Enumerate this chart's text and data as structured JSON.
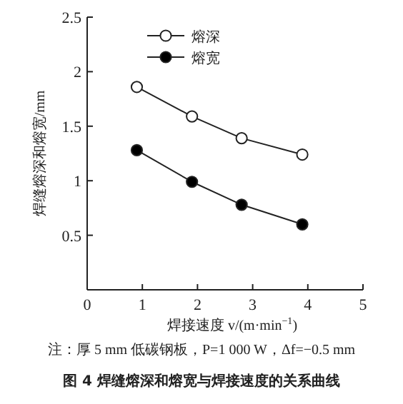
{
  "chart_data": {
    "type": "line",
    "title": "图 4  焊缝熔深和熔宽与焊接速度的关系曲线",
    "xlabel": "焊接速度 v/(m·min$^{−1}$)",
    "ylabel": "焊缝熔深和熔宽/mm",
    "annotations": [
      "注：厚 5 mm 低碳钢板，P=1 000 W，Δf=−0.5 mm"
    ],
    "x": [
      0.9,
      1.9,
      2.8,
      3.9
    ],
    "series": [
      {
        "name": "熔深",
        "color": "#ffffff",
        "values": [
          1.86,
          1.59,
          1.39,
          1.24
        ]
      },
      {
        "name": "熔宽",
        "color": "#000000",
        "values": [
          1.28,
          0.99,
          0.78,
          0.6
        ]
      }
    ],
    "xlim": [
      0,
      5
    ],
    "xticks": [
      0,
      1,
      2,
      3,
      4,
      5
    ],
    "ylim": [
      0,
      2.5
    ],
    "yticks": [
      0.5,
      1,
      1.5,
      2,
      2.5
    ],
    "marker": "circle",
    "line_style": "solid",
    "legend": "top left",
    "grid": false
  }
}
